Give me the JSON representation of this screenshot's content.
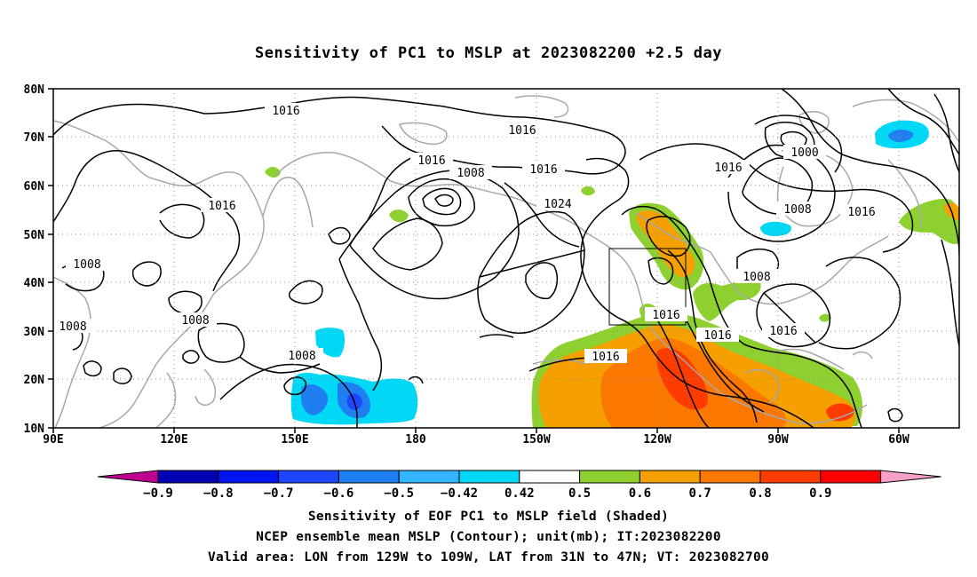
{
  "title": "Sensitivity of PC1 to MSLP at 2023082200 +2.5 day",
  "lat_labels": [
    "80N",
    "70N",
    "60N",
    "50N",
    "40N",
    "30N",
    "20N",
    "10N"
  ],
  "lon_labels": [
    "90E",
    "120E",
    "150E",
    "180",
    "150W",
    "120W",
    "90W",
    "60W"
  ],
  "contour_labels": [
    {
      "text": "1016"
    },
    {
      "text": "1016"
    },
    {
      "text": "1016"
    },
    {
      "text": "1016"
    },
    {
      "text": "1016"
    },
    {
      "text": "1016"
    },
    {
      "text": "1008"
    },
    {
      "text": "1024"
    },
    {
      "text": "1000"
    },
    {
      "text": "1008"
    },
    {
      "text": "1016"
    },
    {
      "text": "1008"
    },
    {
      "text": "1008"
    },
    {
      "text": "1008"
    },
    {
      "text": "1008"
    },
    {
      "text": "1008"
    },
    {
      "text": "1016"
    },
    {
      "text": "1016"
    },
    {
      "text": "1016"
    },
    {
      "text": "1016"
    }
  ],
  "colorbar": {
    "colors": [
      "#c0008f",
      "#0000b4",
      "#0014f0",
      "#1e46ff",
      "#1f7ff0",
      "#32b4ff",
      "#00d8f5",
      "#ffffff",
      "#8ed030",
      "#f5a000",
      "#fa7800",
      "#ff3c00",
      "#ff0000",
      "#f5a0c8"
    ],
    "labels": [
      "-0.9",
      "-0.8",
      "-0.7",
      "-0.6",
      "-0.5",
      "-0.42",
      "0.42",
      "0.5",
      "0.6",
      "0.7",
      "0.8",
      "0.9"
    ]
  },
  "captions": {
    "line1": "Sensitivity of EOF PC1 to MSLP field (Shaded)",
    "line2": "NCEP ensemble mean MSLP (Contour); unit(mb); IT:2023082200",
    "line3": "Valid area: LON from 129W to 109W, LAT from 31N to 47N; VT: 2023082700"
  }
}
